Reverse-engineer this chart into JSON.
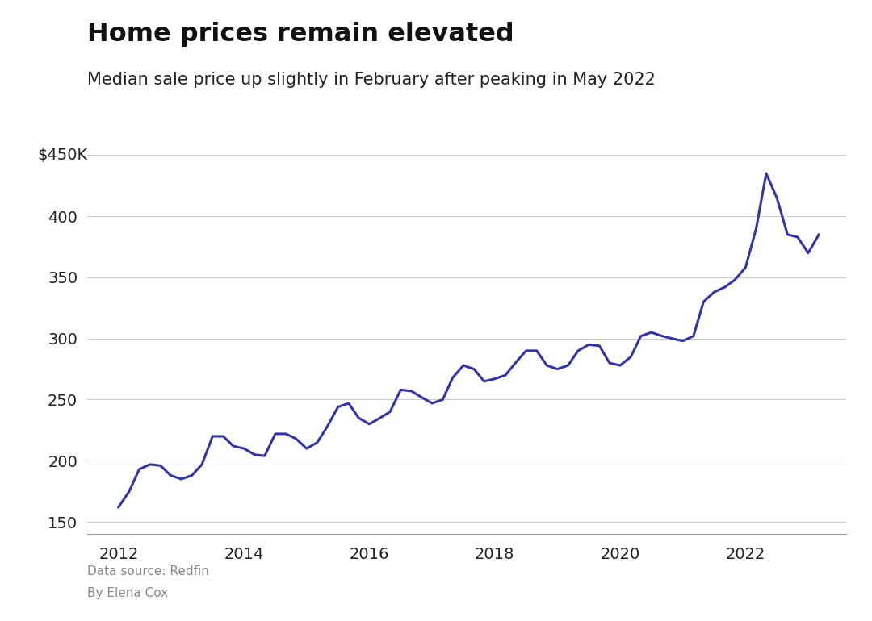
{
  "title": "Home prices remain elevated",
  "subtitle": "Median sale price up slightly in February after peaking in May 2022",
  "source_line1": "Data source: Redfin",
  "source_line2": "By Elena Cox",
  "line_color": "#3333aa",
  "background_color": "#ffffff",
  "ylim": [
    140,
    455
  ],
  "yticks": [
    150,
    200,
    250,
    300,
    350,
    400
  ],
  "ytop_label": "$450K",
  "xlim_start": 2011.5,
  "xlim_end": 2023.6,
  "xticks": [
    2012,
    2014,
    2016,
    2018,
    2020,
    2022
  ],
  "data": [
    [
      2012.0,
      162
    ],
    [
      2012.17,
      175
    ],
    [
      2012.33,
      193
    ],
    [
      2012.5,
      197
    ],
    [
      2012.67,
      196
    ],
    [
      2012.83,
      188
    ],
    [
      2013.0,
      185
    ],
    [
      2013.17,
      188
    ],
    [
      2013.33,
      197
    ],
    [
      2013.5,
      220
    ],
    [
      2013.67,
      220
    ],
    [
      2013.83,
      212
    ],
    [
      2014.0,
      210
    ],
    [
      2014.17,
      205
    ],
    [
      2014.33,
      204
    ],
    [
      2014.5,
      222
    ],
    [
      2014.67,
      222
    ],
    [
      2014.83,
      218
    ],
    [
      2015.0,
      210
    ],
    [
      2015.17,
      215
    ],
    [
      2015.33,
      228
    ],
    [
      2015.5,
      244
    ],
    [
      2015.67,
      247
    ],
    [
      2015.83,
      235
    ],
    [
      2016.0,
      230
    ],
    [
      2016.17,
      235
    ],
    [
      2016.33,
      240
    ],
    [
      2016.5,
      258
    ],
    [
      2016.67,
      257
    ],
    [
      2016.83,
      252
    ],
    [
      2017.0,
      247
    ],
    [
      2017.17,
      250
    ],
    [
      2017.33,
      268
    ],
    [
      2017.5,
      278
    ],
    [
      2017.67,
      275
    ],
    [
      2017.83,
      265
    ],
    [
      2018.0,
      267
    ],
    [
      2018.17,
      270
    ],
    [
      2018.33,
      280
    ],
    [
      2018.5,
      290
    ],
    [
      2018.67,
      290
    ],
    [
      2018.83,
      278
    ],
    [
      2019.0,
      275
    ],
    [
      2019.17,
      278
    ],
    [
      2019.33,
      290
    ],
    [
      2019.5,
      295
    ],
    [
      2019.67,
      294
    ],
    [
      2019.83,
      280
    ],
    [
      2020.0,
      278
    ],
    [
      2020.17,
      285
    ],
    [
      2020.33,
      302
    ],
    [
      2020.5,
      305
    ],
    [
      2020.67,
      302
    ],
    [
      2020.83,
      300
    ],
    [
      2021.0,
      298
    ],
    [
      2021.17,
      302
    ],
    [
      2021.33,
      330
    ],
    [
      2021.5,
      338
    ],
    [
      2021.67,
      342
    ],
    [
      2021.83,
      348
    ],
    [
      2022.0,
      358
    ],
    [
      2022.17,
      390
    ],
    [
      2022.33,
      435
    ],
    [
      2022.5,
      415
    ],
    [
      2022.67,
      385
    ],
    [
      2022.83,
      383
    ],
    [
      2023.0,
      370
    ],
    [
      2023.17,
      385
    ]
  ]
}
